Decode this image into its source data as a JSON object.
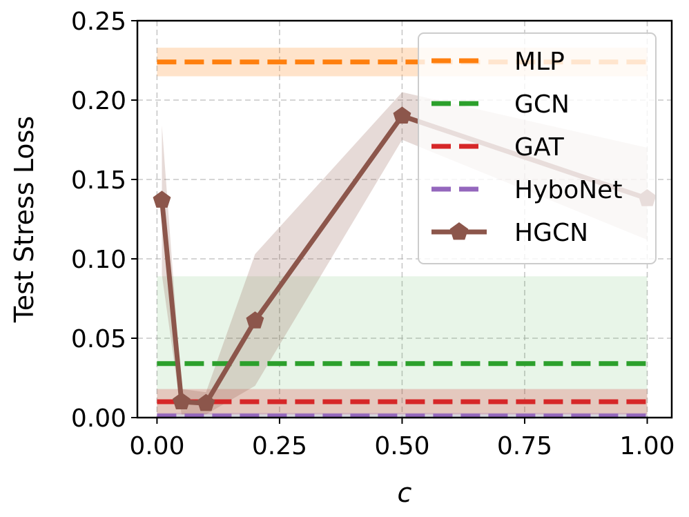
{
  "chart_data": {
    "type": "line",
    "xlabel": "c",
    "ylabel": "Test Stress Loss",
    "xlim": [
      -0.04,
      1.05
    ],
    "ylim": [
      0.0,
      0.25
    ],
    "xticks": [
      "0.00",
      "0.25",
      "0.50",
      "0.75",
      "1.00"
    ],
    "yticks": [
      "0.00",
      "0.05",
      "0.10",
      "0.15",
      "0.20",
      "0.25"
    ],
    "grid": true,
    "legend_position": "top-right",
    "series": [
      {
        "name": "MLP",
        "style": "dashed-horizontal",
        "color": "#ff7f0e",
        "y": 0.224,
        "band": [
          0.215,
          0.233
        ]
      },
      {
        "name": "GCN",
        "style": "dashed-horizontal",
        "color": "#2ca02c",
        "y": 0.034,
        "band": [
          0.0,
          0.089
        ]
      },
      {
        "name": "GAT",
        "style": "dashed-horizontal",
        "color": "#d62728",
        "y": 0.01,
        "band": [
          0.002,
          0.018
        ]
      },
      {
        "name": "HyboNet",
        "style": "dashed-horizontal",
        "color": "#9467bd",
        "y": 0.001,
        "band": [
          0.0,
          0.003
        ]
      },
      {
        "name": "HGCN",
        "style": "line-pentagon",
        "color": "#8c564b",
        "x": [
          0.01,
          0.05,
          0.1,
          0.2,
          0.5,
          1.0
        ],
        "y": [
          0.137,
          0.01,
          0.009,
          0.061,
          0.19,
          0.138
        ],
        "lower": [
          0.09,
          0.002,
          0.002,
          0.02,
          0.175,
          0.112
        ],
        "upper": [
          0.184,
          0.018,
          0.016,
          0.103,
          0.205,
          0.17
        ]
      }
    ]
  }
}
